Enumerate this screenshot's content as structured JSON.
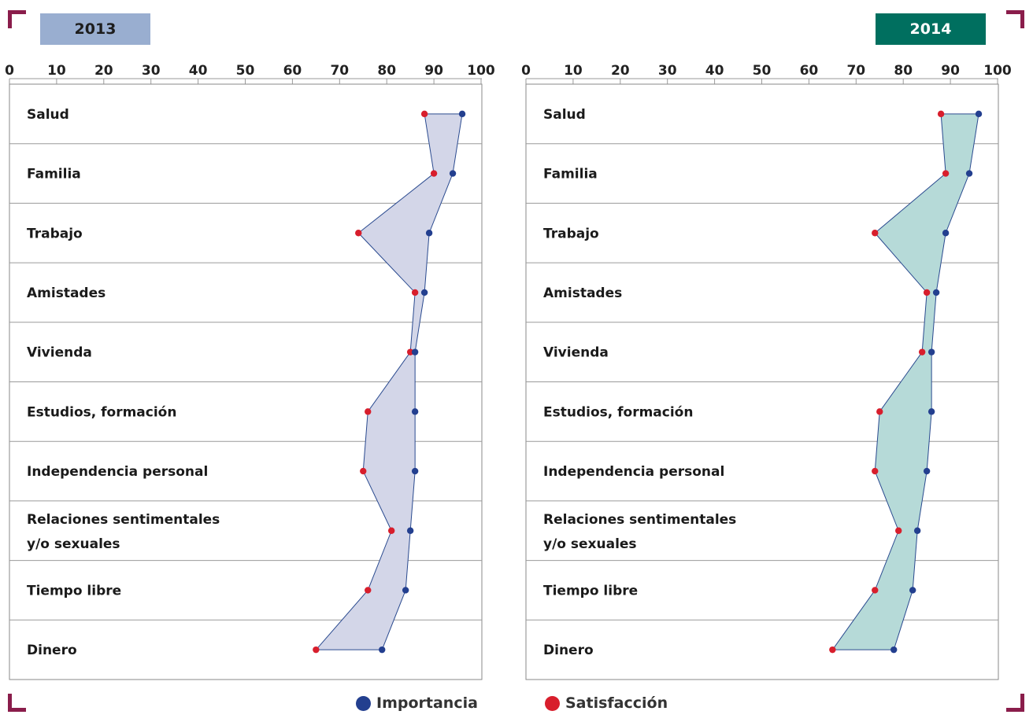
{
  "colors": {
    "importancia": "#233f8f",
    "satisfaccion": "#d81e2c",
    "fill_2013": "#d3d6e8",
    "fill_2014": "#b6dad8",
    "header_2013": "#99aed0",
    "header_2014": "#006f5f",
    "corner": "#8a1d4b",
    "grid": "#9a9a9a"
  },
  "legend": {
    "importancia": "Importancia",
    "satisfaccion": "Satisfacción"
  },
  "chart_data": [
    {
      "type": "line",
      "title": "2013",
      "xlim": [
        0,
        100
      ],
      "xticks": [
        "0",
        "10",
        "20",
        "30",
        "40",
        "50",
        "60",
        "70",
        "80",
        "90",
        "100"
      ],
      "categories": [
        "Salud",
        "Familia",
        "Trabajo",
        "Amistades",
        "Vivienda",
        "Estudios, formación",
        "Independencia personal",
        "Relaciones sentimentales\ny/o sexuales",
        "Tiempo libre",
        "Dinero"
      ],
      "series": [
        {
          "name": "Importancia",
          "values": [
            96,
            94,
            89,
            88,
            86,
            86,
            86,
            85,
            84,
            79
          ]
        },
        {
          "name": "Satisfacción",
          "values": [
            88,
            90,
            74,
            86,
            85,
            76,
            75,
            81,
            76,
            65
          ]
        }
      ],
      "grid": true,
      "legend_position": "bottom"
    },
    {
      "type": "line",
      "title": "2014",
      "xlim": [
        0,
        100
      ],
      "xticks": [
        "0",
        "10",
        "20",
        "30",
        "40",
        "50",
        "60",
        "70",
        "80",
        "90",
        "100"
      ],
      "categories": [
        "Salud",
        "Familia",
        "Trabajo",
        "Amistades",
        "Vivienda",
        "Estudios, formación",
        "Independencia personal",
        "Relaciones sentimentales\ny/o sexuales",
        "Tiempo libre",
        "Dinero"
      ],
      "series": [
        {
          "name": "Importancia",
          "values": [
            96,
            94,
            89,
            87,
            86,
            86,
            85,
            83,
            82,
            78
          ]
        },
        {
          "name": "Satisfacción",
          "values": [
            88,
            89,
            74,
            85,
            84,
            75,
            74,
            79,
            74,
            65
          ]
        }
      ],
      "grid": true,
      "legend_position": "bottom"
    }
  ]
}
